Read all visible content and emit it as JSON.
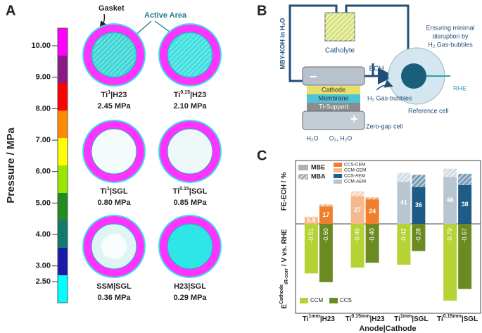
{
  "panel_a": {
    "letter": "A",
    "colorbar": {
      "label": "Pressure / MPa",
      "lim": [
        1.83,
        10.56
      ],
      "ticks": [
        {
          "value": 10,
          "label": "10.00"
        },
        {
          "value": 9,
          "label": "9.00"
        },
        {
          "value": 8,
          "label": "8.00"
        },
        {
          "value": 7,
          "label": "7.00"
        },
        {
          "value": 6,
          "label": "6.00"
        },
        {
          "value": 5,
          "label": "5.00"
        },
        {
          "value": 4,
          "label": "4.00"
        },
        {
          "value": 3,
          "label": "3.00"
        },
        {
          "value": 2.5,
          "label": "2.50"
        }
      ]
    },
    "annotations": {
      "gasket": "Gasket",
      "active_area": "Active Area"
    },
    "samples": [
      {
        "name": [
          "Ti",
          "1",
          "|H23"
        ],
        "pressure": "2.45 MPa"
      },
      {
        "name": [
          "Ti",
          "0.15",
          "|H23"
        ],
        "pressure": "2.10 MPa"
      },
      {
        "name": [
          "Ti",
          "1",
          "|SGL"
        ],
        "pressure": "0.80 MPa"
      },
      {
        "name": [
          "Ti",
          "0.15",
          "|SGL"
        ],
        "pressure": "0.85 MPa"
      },
      {
        "name": [
          "SSM|SGL"
        ],
        "pressure": "0.36 MPa"
      },
      {
        "name": [
          "H23|SGL"
        ],
        "pressure": "0.29 MPa"
      }
    ]
  },
  "panel_b": {
    "letter": "B",
    "feed": "MBY-KOH in H₂O",
    "catholyte": "Catholyte",
    "ech": "ECH",
    "note": [
      "Ensuring minimal",
      "disruption by",
      "H₂ Gas-bubbles"
    ],
    "layers": [
      "Cathode",
      "Membrane",
      "Ti-Support"
    ],
    "minus": "−",
    "plus": "+",
    "bubbles": "H₂ Gas-bubbles",
    "rhe": "RHE",
    "reference": "Reference cell",
    "cell": "Zero-gap cell",
    "in": "H₂O",
    "out": "O₂, H₂O"
  },
  "chart_data": {
    "type": "bar",
    "letter": "C",
    "categories": [
      [
        "Ti",
        "1mm",
        "|H23"
      ],
      [
        "Ti",
        "0.15mm",
        "|H23"
      ],
      [
        "Ti",
        "1mm",
        "|SGL"
      ],
      [
        "Ti",
        "0.15mm",
        "|SGL"
      ]
    ],
    "xlabel": "Anode|Cathode",
    "fe": {
      "ylabel": "FE-ECH / %",
      "ylim": [
        0,
        62
      ],
      "series": [
        {
          "mbe": [
            6.6,
            27,
            41,
            46
          ],
          "mba": [
            0.6,
            5,
            9,
            8
          ],
          "colors": [
            "#f6b98c",
            "#f6b98c",
            "#b9c5d1",
            "#b9c5d1"
          ]
        },
        {
          "mbe": [
            17,
            24,
            36,
            38
          ],
          "mba": [
            2,
            2,
            12,
            11
          ],
          "colors": [
            "#ee7f2d",
            "#ee7f2d",
            "#1f5b87",
            "#1f5b87"
          ]
        }
      ],
      "legend_parts": [
        {
          "name": "MBE",
          "color": "#b0b0b0"
        },
        {
          "name": "MBA",
          "color": "#b0b0b0"
        }
      ],
      "legend_colors": [
        {
          "name": "CCS-CEM",
          "color": "#ee7f2d"
        },
        {
          "name": "CCM-CEM",
          "color": "#f6b98c"
        },
        {
          "name": "CCS-AEM",
          "color": "#1f5b87"
        },
        {
          "name": "CCM-AEM",
          "color": "#b9c5d1"
        }
      ]
    },
    "e": {
      "ylabel": [
        "E",
        "Cathode",
        "iR-corr",
        " / V vs. RHE"
      ],
      "ylim": [
        -0.92,
        0
      ],
      "series": [
        {
          "name": "CCM",
          "color": "#b5d334",
          "values": [
            -0.51,
            -0.45,
            -0.42,
            -0.79
          ],
          "value_labels": [
            "-0.51",
            "-0.45",
            "-0.42",
            "-0.79"
          ]
        },
        {
          "name": "CCS",
          "color": "#6b8b22",
          "values": [
            -0.6,
            -0.4,
            -0.28,
            -0.67
          ],
          "value_labels": [
            "-0.60",
            "-0.40",
            "-0.28",
            "-0.67"
          ]
        }
      ]
    }
  }
}
